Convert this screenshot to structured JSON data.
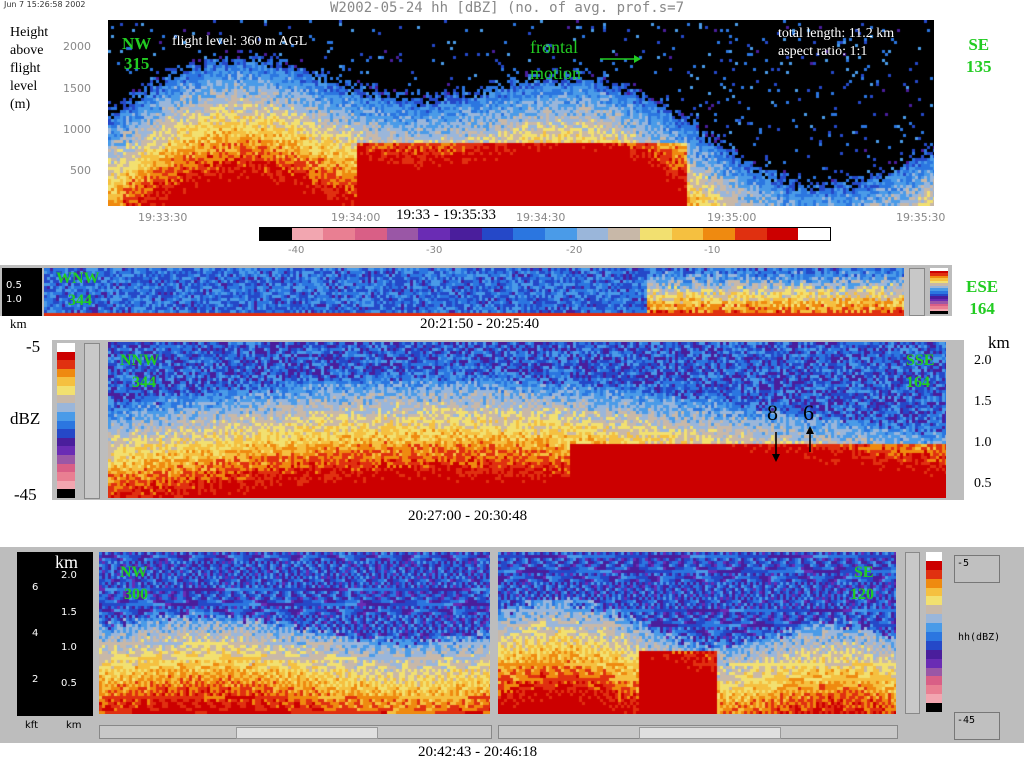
{
  "header": {
    "timestamp": "Jun  7 15:26:58 2002",
    "title": "W2002-05-24 hh [dBZ] (no. of avg. prof.s=7"
  },
  "panel1": {
    "ylabel": "Height above flight level (m)",
    "ylabel_lines": [
      "Height",
      "above",
      "flight",
      "level",
      "(m)"
    ],
    "left_dir": "NW",
    "left_deg": "315",
    "right_dir": "SE",
    "right_deg": "135",
    "flight_level": "flight level: 360 m AGL",
    "frontal": [
      "frontal",
      "motion"
    ],
    "total_length": "total length: 11.2 km",
    "aspect": "aspect ratio: 1:1",
    "yticks": [
      "2000",
      "1500",
      "1000",
      "500"
    ],
    "xticks": [
      "19:33:30",
      "19:34:00",
      "19:34:30",
      "19:35:00",
      "19:35:30"
    ],
    "time_range": "19:33 - 19:35:33",
    "cbar_ticks": [
      "-40",
      "-30",
      "-20",
      "-10"
    ]
  },
  "panel2": {
    "yticks": [
      "0.5",
      "1.0"
    ],
    "unit": "km",
    "left_dir": "WNW",
    "left_deg": "344",
    "right_dir": "ESE",
    "right_deg": "164",
    "time_range": "20:21:50 - 20:25:40"
  },
  "panel3": {
    "cbar_top": "-5",
    "cbar_mid": "dBZ",
    "cbar_bottom": "-45",
    "left_dir": "NNW",
    "left_deg": "344",
    "right_dir": "SSE",
    "right_deg": "164",
    "unit": "km",
    "yticks": [
      "2.0",
      "1.5",
      "1.0",
      "0.5"
    ],
    "marker_a": "8",
    "marker_b": "6",
    "time_range": "20:27:00 - 20:30:48"
  },
  "panel4": {
    "kft_ticks": [
      "6",
      "4",
      "2"
    ],
    "km_unit": "km",
    "km_ticks": [
      "2.0",
      "1.5",
      "1.0",
      "0.5"
    ],
    "foot_kft": "kft",
    "foot_km": "km",
    "left_dir": "NW",
    "left_deg": "300",
    "right_dir": "SE",
    "right_deg": "120",
    "cbar_top": "-5",
    "cbar_label": "hh(dBZ)",
    "cbar_bottom": "-45",
    "time_range": "20:42:43 - 20:46:18"
  },
  "colors": {
    "palette": [
      "#000000",
      "#f2a6b0",
      "#e97f92",
      "#d95f86",
      "#9a57a6",
      "#6a2cb4",
      "#4a1e9c",
      "#2548c8",
      "#2b76e0",
      "#4a9be8",
      "#9ab6da",
      "#c8b8a8",
      "#f2e070",
      "#f5c040",
      "#ef8a10",
      "#e03010",
      "#cc0000",
      "#ffffff"
    ]
  },
  "chart_data": [
    {
      "type": "heatmap",
      "title": "W2002-05-24 hh [dBZ] (no. of avg. prof.s=7",
      "xlabel": "19:33 - 19:35:33",
      "ylabel": "Height above flight level (m)",
      "xticks": [
        "19:33:30",
        "19:34:00",
        "19:34:30",
        "19:35:00",
        "19:35:30"
      ],
      "yticks": [
        2000,
        1500,
        1000,
        500
      ],
      "zlabel": "dBZ",
      "zlim": [
        -45,
        -5
      ]
    },
    {
      "type": "heatmap",
      "xlabel": "20:21:50 - 20:25:40",
      "ylabel": "km",
      "yticks": [
        0.5,
        1.0
      ]
    },
    {
      "type": "heatmap",
      "xlabel": "20:27:00 - 20:30:48",
      "ylabel": "km",
      "yticks": [
        2.0,
        1.5,
        1.0,
        0.5
      ],
      "zlim": [
        -45,
        -5
      ]
    },
    {
      "type": "heatmap",
      "xlabel": "20:42:43 - 20:46:18",
      "ylabel": "km",
      "yticks": [
        2.0,
        1.5,
        1.0,
        0.5
      ],
      "y2ticks_kft": [
        6,
        4,
        2
      ],
      "zlim": [
        -45,
        -5
      ]
    }
  ]
}
